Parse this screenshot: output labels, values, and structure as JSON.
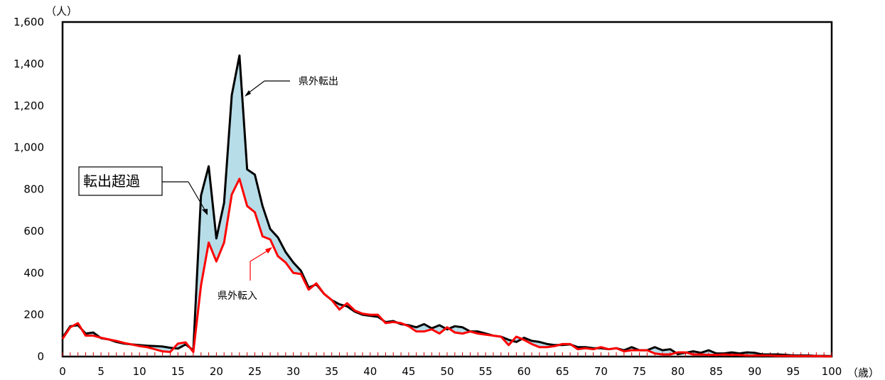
{
  "chart_data": {
    "type": "line",
    "title": "",
    "xlabel": "",
    "ylabel": "",
    "y_unit_label": "（人）",
    "x_unit_label": "（歳）",
    "xlim": [
      0,
      100
    ],
    "ylim": [
      0,
      1600
    ],
    "grid": false,
    "x_ticks": [
      "0",
      "5",
      "10",
      "15",
      "20",
      "25",
      "30",
      "35",
      "40",
      "45",
      "50",
      "55",
      "60",
      "65",
      "70",
      "75",
      "80",
      "85",
      "90",
      "95",
      "100"
    ],
    "y_ticks": [
      "0",
      "200",
      "400",
      "600",
      "800",
      "1,000",
      "1,200",
      "1,400",
      "1,600"
    ],
    "colors": {
      "out": "#000000",
      "in": "#ff0000",
      "fill": "#b7dde8"
    },
    "annotations": {
      "out_label": "県外転出",
      "in_label": "県外転入",
      "excess_label": "転出超過"
    },
    "x": [
      0,
      1,
      2,
      3,
      4,
      5,
      6,
      7,
      8,
      9,
      10,
      11,
      12,
      13,
      14,
      15,
      16,
      17,
      18,
      19,
      20,
      21,
      22,
      23,
      24,
      25,
      26,
      27,
      28,
      29,
      30,
      31,
      32,
      33,
      34,
      35,
      36,
      37,
      38,
      39,
      40,
      41,
      42,
      43,
      44,
      45,
      46,
      47,
      48,
      49,
      50,
      51,
      52,
      53,
      54,
      55,
      56,
      57,
      58,
      59,
      60,
      61,
      62,
      63,
      64,
      65,
      66,
      67,
      68,
      69,
      70,
      71,
      72,
      73,
      74,
      75,
      76,
      77,
      78,
      79,
      80,
      81,
      82,
      83,
      84,
      85,
      86,
      87,
      88,
      89,
      90,
      91,
      92,
      93,
      94,
      95,
      96,
      97,
      98,
      99,
      100
    ],
    "series": [
      {
        "id": "out",
        "values": [
          90,
          145,
          150,
          110,
          115,
          88,
          82,
          70,
          62,
          58,
          55,
          52,
          50,
          48,
          42,
          38,
          58,
          30,
          770,
          910,
          565,
          735,
          1250,
          1440,
          895,
          870,
          720,
          610,
          570,
          500,
          450,
          410,
          330,
          345,
          300,
          270,
          250,
          240,
          215,
          200,
          195,
          190,
          165,
          170,
          155,
          150,
          140,
          155,
          135,
          150,
          130,
          145,
          140,
          120,
          120,
          110,
          100,
          95,
          80,
          70,
          90,
          75,
          70,
          60,
          55,
          55,
          58,
          45,
          45,
          40,
          40,
          35,
          40,
          30,
          45,
          30,
          30,
          45,
          30,
          35,
          12,
          18,
          25,
          18,
          30,
          15,
          15,
          20,
          15,
          20,
          18,
          10,
          10,
          10,
          8,
          5,
          5,
          5,
          3,
          3,
          2
        ]
      },
      {
        "id": "in",
        "values": [
          85,
          140,
          160,
          100,
          100,
          90,
          82,
          75,
          65,
          58,
          50,
          45,
          35,
          25,
          22,
          62,
          68,
          22,
          340,
          545,
          455,
          545,
          775,
          850,
          720,
          690,
          575,
          560,
          480,
          450,
          400,
          395,
          320,
          350,
          300,
          270,
          225,
          255,
          220,
          205,
          200,
          200,
          160,
          165,
          160,
          145,
          120,
          120,
          130,
          110,
          140,
          115,
          110,
          120,
          110,
          105,
          100,
          95,
          55,
          95,
          80,
          60,
          45,
          45,
          50,
          60,
          60,
          35,
          40,
          35,
          45,
          35,
          40,
          25,
          30,
          30,
          30,
          15,
          10,
          10,
          20,
          20,
          10,
          10,
          8,
          8,
          10,
          8,
          8,
          5,
          5,
          5,
          5,
          3,
          3,
          2,
          2,
          2,
          2,
          1,
          1
        ]
      }
    ]
  }
}
